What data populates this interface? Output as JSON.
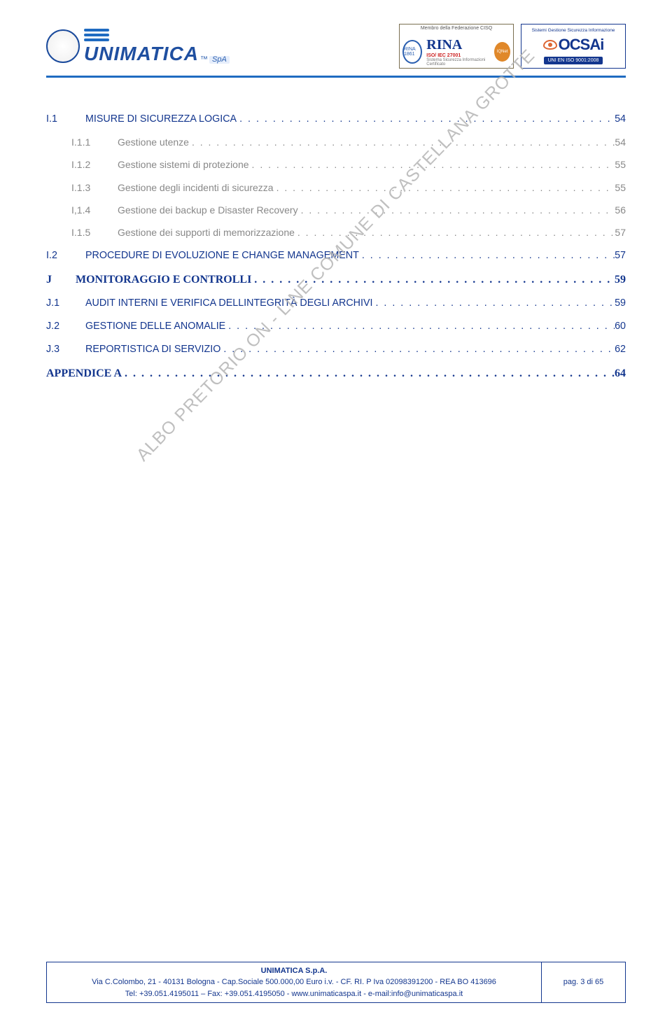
{
  "colors": {
    "link_blue": "#13368e",
    "grey_text": "#888888",
    "header_rule": "#1f6bc1",
    "watermark": "#b5b5b5"
  },
  "header": {
    "unimatica_word": "UNIMATICA",
    "unimatica_tm": "™",
    "unimatica_spa": "SpA",
    "rina": {
      "top": "Membro della Federazione CISQ",
      "name": "RINA",
      "sub": "ISO/ IEC 27001",
      "sub2": "Sistema Sicurezza Informazioni Certificato",
      "iqnet": "IQNet",
      "seal": "RINA 1861"
    },
    "ocsai": {
      "top": "Sistemi Gestione Sicurezza Informazione",
      "name": "OCSAi",
      "bar": "UNI EN ISO 9001:2008"
    }
  },
  "toc": {
    "leader": ".",
    "entries": [
      {
        "level": 1,
        "style": "sans",
        "num": "I.1",
        "title": "MISURE DI SICUREZZA LOGICA",
        "page": "54"
      },
      {
        "level": 2,
        "num": "I.1.1",
        "title": "Gestione utenze",
        "page": "54"
      },
      {
        "level": 2,
        "num": "I.1.2",
        "title": "Gestione sistemi di protezione",
        "page": "55"
      },
      {
        "level": 2,
        "num": "I.1.3",
        "title": "Gestione degli incidenti di sicurezza",
        "page": "55"
      },
      {
        "level": 2,
        "num": "I,1.4",
        "title": "Gestione dei backup e Disaster Recovery",
        "page": "56"
      },
      {
        "level": 2,
        "num": "I.1.5",
        "title": "Gestione dei supporti di memorizzazione",
        "page": "57"
      },
      {
        "level": 1,
        "style": "sans",
        "num": "I.2",
        "title": "PROCEDURE DI EVOLUZIONE E CHANGE MANAGEMENT",
        "page": "57"
      },
      {
        "level": 1,
        "style": "serif",
        "num": "J",
        "title": "MONITORAGGIO E CONTROLLI",
        "page": "59"
      },
      {
        "level": 1,
        "style": "sans",
        "num": "J.1",
        "title": "AUDIT INTERNI E VERIFICA DELLINTEGRITÀ DEGLI ARCHIVI",
        "page": "59"
      },
      {
        "level": 1,
        "style": "sans",
        "num": "J.2",
        "title": "GESTIONE DELLE ANOMALIE",
        "page": "60"
      },
      {
        "level": 1,
        "style": "sans",
        "num": "J.3",
        "title": "REPORTISTICA DI SERVIZIO",
        "page": "62"
      },
      {
        "level": 1,
        "style": "serif",
        "num": "",
        "title": "APPENDICE A",
        "page": "64"
      }
    ]
  },
  "watermark": "ALBO PRETORIO ON - LINE COMUNE DI CASTELLANA GROTTE",
  "footer": {
    "company": "UNIMATICA S.p.A.",
    "addr": "Via C.Colombo, 21 - 40131 Bologna - Cap.Sociale 500.000,00 Euro i.v. - CF. RI. P Iva 02098391200 - REA BO 413696",
    "contacts": "Tel: +39.051.4195011 – Fax: +39.051.4195050 - www.unimaticaspa.it - e-mail:info@unimaticaspa.it",
    "page": "pag. 3 di 65"
  }
}
